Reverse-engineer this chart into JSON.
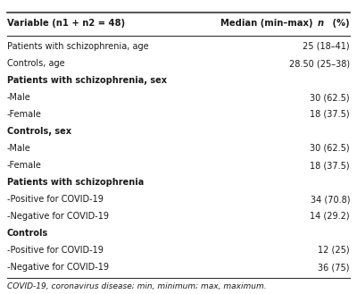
{
  "col1_header": "Variable (n1 + n2 = 48)",
  "col2_header_pre": "Median (min–max) ",
  "col2_header_italic": "n",
  "col2_header_post": " (%)",
  "rows": [
    {
      "label": "Patients with schizophrenia, age",
      "value": "25 (18–41)",
      "bold": false
    },
    {
      "label": "Controls, age",
      "value": "28.50 (25–38)",
      "bold": false
    },
    {
      "label": "Patients with schizophrenia, sex",
      "value": "",
      "bold": true
    },
    {
      "label": "-Male",
      "value": "30 (62.5)",
      "bold": false
    },
    {
      "label": "-Female",
      "value": "18 (37.5)",
      "bold": false
    },
    {
      "label": "Controls, sex",
      "value": "",
      "bold": true
    },
    {
      "label": "-Male",
      "value": "30 (62.5)",
      "bold": false
    },
    {
      "label": "-Female",
      "value": "18 (37.5)",
      "bold": false
    },
    {
      "label": "Patients with schizophrenia",
      "value": "",
      "bold": true
    },
    {
      "label": "-Positive for COVID-19",
      "value": "34 (70.8)",
      "bold": false
    },
    {
      "label": "-Negative for COVID-19",
      "value": "14 (29.2)",
      "bold": false
    },
    {
      "label": "Controls",
      "value": "",
      "bold": true
    },
    {
      "label": "-Positive for COVID-19",
      "value": "12 (25)",
      "bold": false
    },
    {
      "label": "-Negative for COVID-19",
      "value": "36 (75)",
      "bold": false
    }
  ],
  "footnote": "COVID-19, coronavirus disease; min, minimum; max, maximum.",
  "bg_color": "#ffffff",
  "line_color": "#333333",
  "text_color": "#1a1a1a",
  "font_size": 7.0,
  "header_font_size": 7.2
}
